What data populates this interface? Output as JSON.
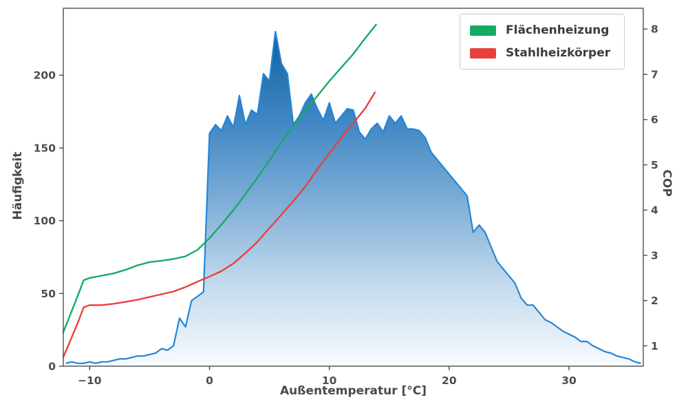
{
  "figure": {
    "background": "#ffffff"
  },
  "chart_data": {
    "type": "combo-area-line",
    "title": "",
    "xlabel": "Außentemperatur [°C]",
    "ylabel_left": "Häufigkeit",
    "ylabel_right": "COP",
    "x_range": [
      -12.2,
      36.2
    ],
    "y_left_range": [
      0,
      246
    ],
    "y_right_range": [
      0.55,
      8.46
    ],
    "x_ticks": [
      -10,
      0,
      10,
      20,
      30
    ],
    "y_left_ticks": [
      0,
      50,
      100,
      150,
      200
    ],
    "y_right_ticks": [
      1,
      2,
      3,
      4,
      5,
      6,
      7,
      8
    ],
    "grid": false,
    "legend_position": "upper right",
    "colors": {
      "axis": "#4d4d4d",
      "text": "#4d4d4d",
      "legend_border": "#cccccc"
    },
    "histogram": {
      "label": "Häufigkeit",
      "axis": "left",
      "line_color": "#2585d6",
      "fill_gradient": [
        {
          "offset": 0,
          "color": "#14609f"
        },
        {
          "offset": 0.25,
          "color": "#3c84c2"
        },
        {
          "offset": 0.5,
          "color": "#7bacd6"
        },
        {
          "offset": 0.75,
          "color": "#c2d9ec"
        },
        {
          "offset": 1,
          "color": "#f8fbfe"
        }
      ],
      "x_start": -12.0,
      "x_step": 0.5,
      "values": [
        2,
        3,
        2,
        2,
        3,
        2,
        3,
        3,
        4,
        5,
        5,
        6,
        7,
        7,
        8,
        9,
        12,
        11,
        14,
        33,
        27,
        45,
        48,
        51,
        160,
        166,
        162,
        172,
        164,
        186,
        166,
        176,
        173,
        201,
        196,
        230,
        208,
        201,
        166,
        172,
        181,
        187,
        177,
        169,
        181,
        167,
        172,
        177,
        176,
        161,
        156,
        163,
        167,
        161,
        172,
        167,
        172,
        163,
        163,
        162,
        157,
        147,
        142,
        137,
        132,
        127,
        122,
        117,
        92,
        97,
        92,
        82,
        72,
        67,
        62,
        57,
        47,
        42,
        42,
        37,
        32,
        30,
        27,
        24,
        22,
        20,
        17,
        17,
        14,
        12,
        10,
        9,
        7,
        6,
        5,
        3,
        2
      ]
    },
    "series": [
      {
        "name": "Flächenheizung",
        "type": "line",
        "axis": "right",
        "color": "#15ab63",
        "x": [
          -12.2,
          -11,
          -10.5,
          -10,
          -9,
          -8,
          -7,
          -6,
          -5,
          -4,
          -3,
          -2,
          -1,
          0,
          1,
          2,
          3,
          4,
          5,
          6,
          7,
          8,
          9,
          10,
          11,
          12,
          13,
          13.9
        ],
        "cop": [
          1.3,
          2.1,
          2.45,
          2.5,
          2.55,
          2.6,
          2.68,
          2.78,
          2.85,
          2.88,
          2.92,
          2.98,
          3.12,
          3.38,
          3.68,
          4.0,
          4.35,
          4.72,
          5.1,
          5.5,
          5.85,
          6.2,
          6.52,
          6.85,
          7.15,
          7.45,
          7.8,
          8.1
        ]
      },
      {
        "name": "Stahlheizkörper",
        "type": "line",
        "axis": "right",
        "color": "#e8413c",
        "x": [
          -12.2,
          -11,
          -10.5,
          -10,
          -9,
          -8,
          -7,
          -6,
          -5,
          -4,
          -3,
          -2,
          -1,
          0,
          1,
          2,
          3,
          4,
          5,
          6,
          7,
          8,
          9,
          10,
          11,
          12,
          13,
          13.8
        ],
        "cop": [
          0.75,
          1.5,
          1.85,
          1.9,
          1.9,
          1.93,
          1.97,
          2.02,
          2.08,
          2.14,
          2.2,
          2.3,
          2.42,
          2.53,
          2.65,
          2.82,
          3.05,
          3.3,
          3.6,
          3.9,
          4.2,
          4.52,
          4.9,
          5.25,
          5.6,
          5.92,
          6.25,
          6.6
        ]
      }
    ]
  }
}
